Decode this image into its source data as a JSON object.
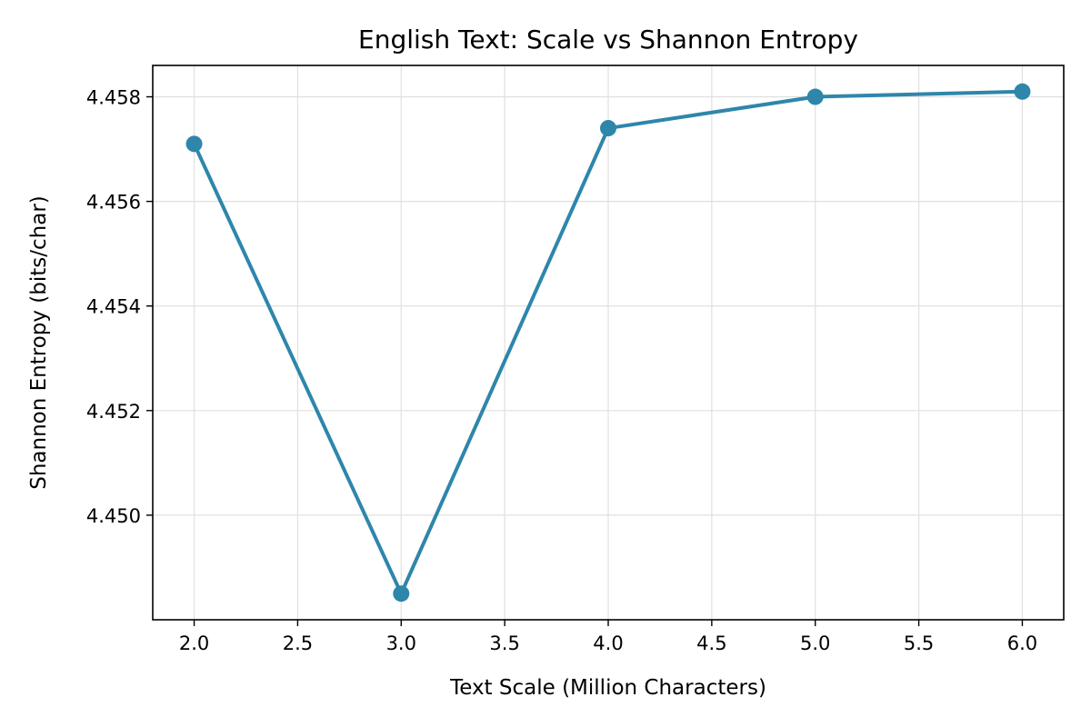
{
  "chart_data": {
    "type": "line",
    "title": "English Text: Scale vs Shannon Entropy",
    "xlabel": "Text Scale (Million Characters)",
    "ylabel": "Shannon Entropy (bits/char)",
    "x": [
      2.0,
      3.0,
      4.0,
      5.0,
      6.0
    ],
    "series": [
      {
        "values": [
          4.4571,
          4.4485,
          4.4574,
          4.458,
          4.4581
        ]
      }
    ],
    "xlim": [
      1.8,
      6.2
    ],
    "ylim": [
      4.448,
      4.4586
    ],
    "x_ticks": [
      "2.0",
      "2.5",
      "3.0",
      "3.5",
      "4.0",
      "4.5",
      "5.0",
      "5.5",
      "6.0"
    ],
    "x_tick_values": [
      2.0,
      2.5,
      3.0,
      3.5,
      4.0,
      4.5,
      5.0,
      5.5,
      6.0
    ],
    "y_ticks": [
      "4.450",
      "4.452",
      "4.454",
      "4.456",
      "4.458"
    ],
    "y_tick_values": [
      4.45,
      4.452,
      4.454,
      4.456,
      4.458
    ],
    "grid": true,
    "colors": {
      "line": "#2e86ab",
      "grid": "#e0e0e0",
      "axes": "#000000"
    }
  }
}
